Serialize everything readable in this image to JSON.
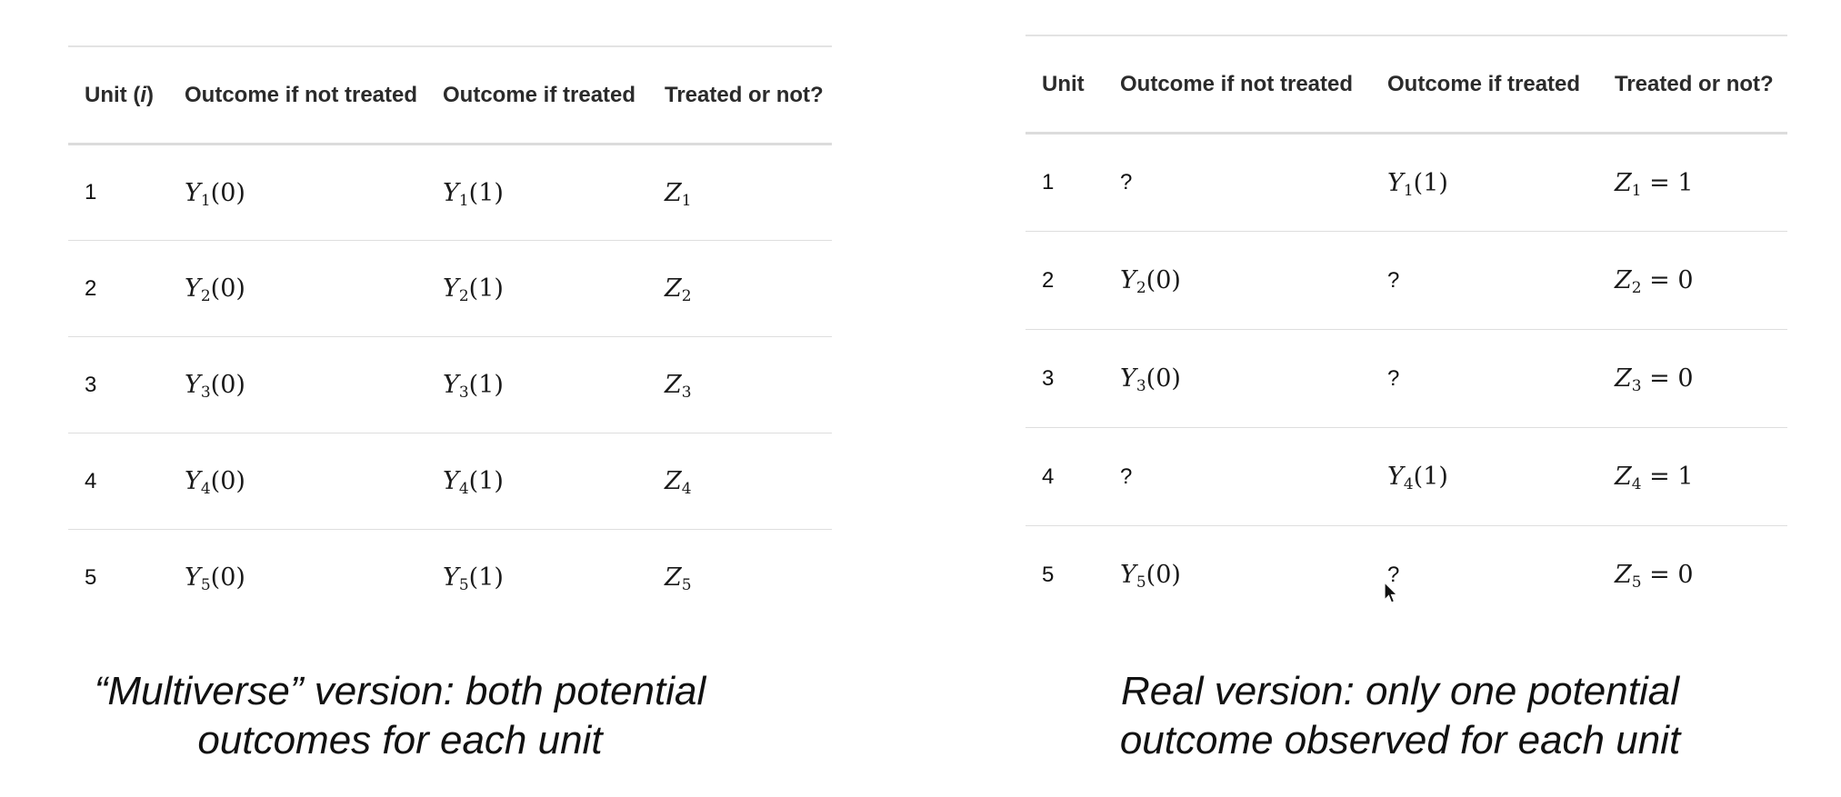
{
  "left": {
    "headers": [
      {
        "text": "Unit (",
        "italic": "i",
        "after": ")"
      },
      {
        "text": "Outcome if not treated"
      },
      {
        "text": "Outcome if treated"
      },
      {
        "text": "Treated or not?"
      }
    ],
    "rows": [
      {
        "unit": "1",
        "not_treated": "Y1(0)",
        "treated": "Y1(1)",
        "z": "Z1"
      },
      {
        "unit": "2",
        "not_treated": "Y2(0)",
        "treated": "Y2(1)",
        "z": "Z2"
      },
      {
        "unit": "3",
        "not_treated": "Y3(0)",
        "treated": "Y3(1)",
        "z": "Z3"
      },
      {
        "unit": "4",
        "not_treated": "Y4(0)",
        "treated": "Y4(1)",
        "z": "Z4"
      },
      {
        "unit": "5",
        "not_treated": "Y5(0)",
        "treated": "Y5(1)",
        "z": "Z5"
      }
    ],
    "caption": "“Multiverse” version: both potential outcomes for each unit"
  },
  "right": {
    "headers": [
      {
        "text": "Unit"
      },
      {
        "text": "Outcome if not treated"
      },
      {
        "text": "Outcome if treated"
      },
      {
        "text": "Treated or not?"
      }
    ],
    "rows": [
      {
        "unit": "1",
        "not_treated": "?",
        "treated": "Y1(1)",
        "z": "Z1 = 1"
      },
      {
        "unit": "2",
        "not_treated": "Y2(0)",
        "treated": "?",
        "z": "Z2 = 0"
      },
      {
        "unit": "3",
        "not_treated": "Y3(0)",
        "treated": "?",
        "z": "Z3 = 0"
      },
      {
        "unit": "4",
        "not_treated": "?",
        "treated": "Y4(1)",
        "z": "Z4 = 1"
      },
      {
        "unit": "5",
        "not_treated": "Y5(0)",
        "treated": "?",
        "z": "Z5 = 0"
      }
    ],
    "caption": "Real version: only one potential outcome observed for each unit"
  }
}
